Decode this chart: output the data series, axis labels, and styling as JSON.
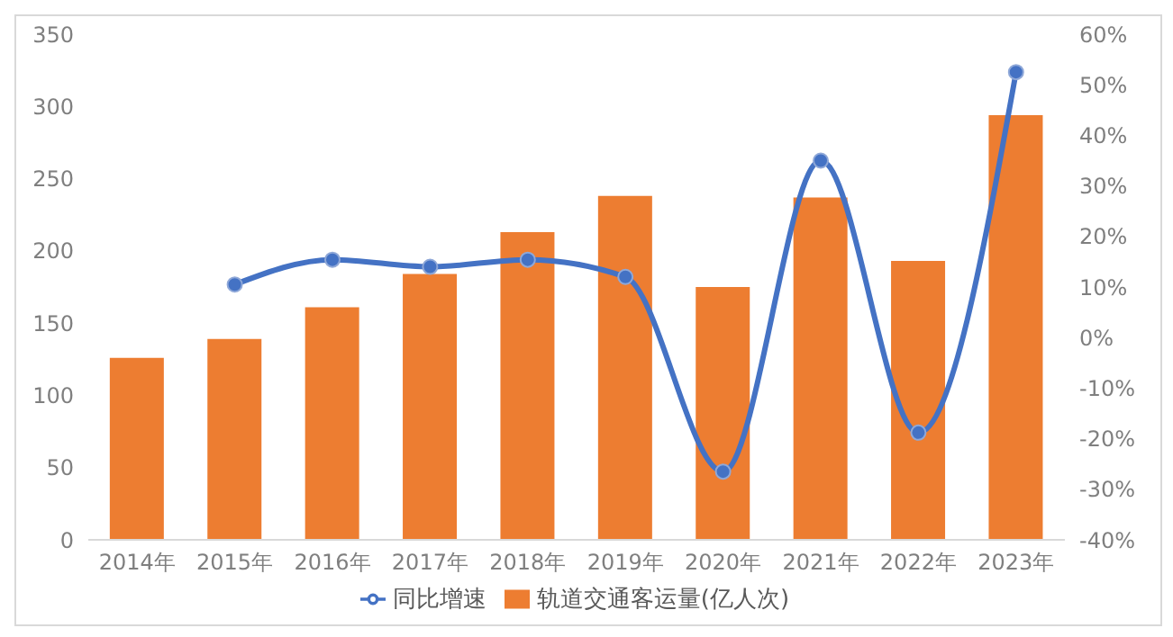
{
  "chart_data": {
    "type": "bar",
    "categories": [
      "2014年",
      "2015年",
      "2016年",
      "2017年",
      "2018年",
      "2019年",
      "2020年",
      "2021年",
      "2022年",
      "2023年"
    ],
    "series": [
      {
        "name": "轨道交通客运量(亿人次)",
        "color": "#ed7d31",
        "values": [
          126,
          139,
          161,
          184,
          213,
          238,
          175,
          237,
          193,
          294
        ]
      },
      {
        "name": "同比增速",
        "type": "line",
        "axis": "y2",
        "color": "#4472c4",
        "marker": "circle",
        "values": [
          null,
          10.5,
          15.4,
          14,
          15.4,
          12,
          -26.5,
          35,
          -18.8,
          52.5
        ]
      }
    ],
    "ylim": [
      0,
      350
    ],
    "yticks": [
      0,
      50,
      100,
      150,
      200,
      250,
      300,
      350
    ],
    "y2lim": [
      -40,
      60
    ],
    "y2ticks": [
      {
        "value": -40,
        "label": "-40%"
      },
      {
        "value": -30,
        "label": "-30%"
      },
      {
        "value": -20,
        "label": "-20%"
      },
      {
        "value": -10,
        "label": "-10%"
      },
      {
        "value": 0,
        "label": "0%"
      },
      {
        "value": 10,
        "label": "10%"
      },
      {
        "value": 20,
        "label": "20%"
      },
      {
        "value": 30,
        "label": "30%"
      },
      {
        "value": 40,
        "label": "40%"
      },
      {
        "value": 50,
        "label": "50%"
      },
      {
        "value": 60,
        "label": "60%"
      }
    ],
    "legend": "bottom"
  }
}
